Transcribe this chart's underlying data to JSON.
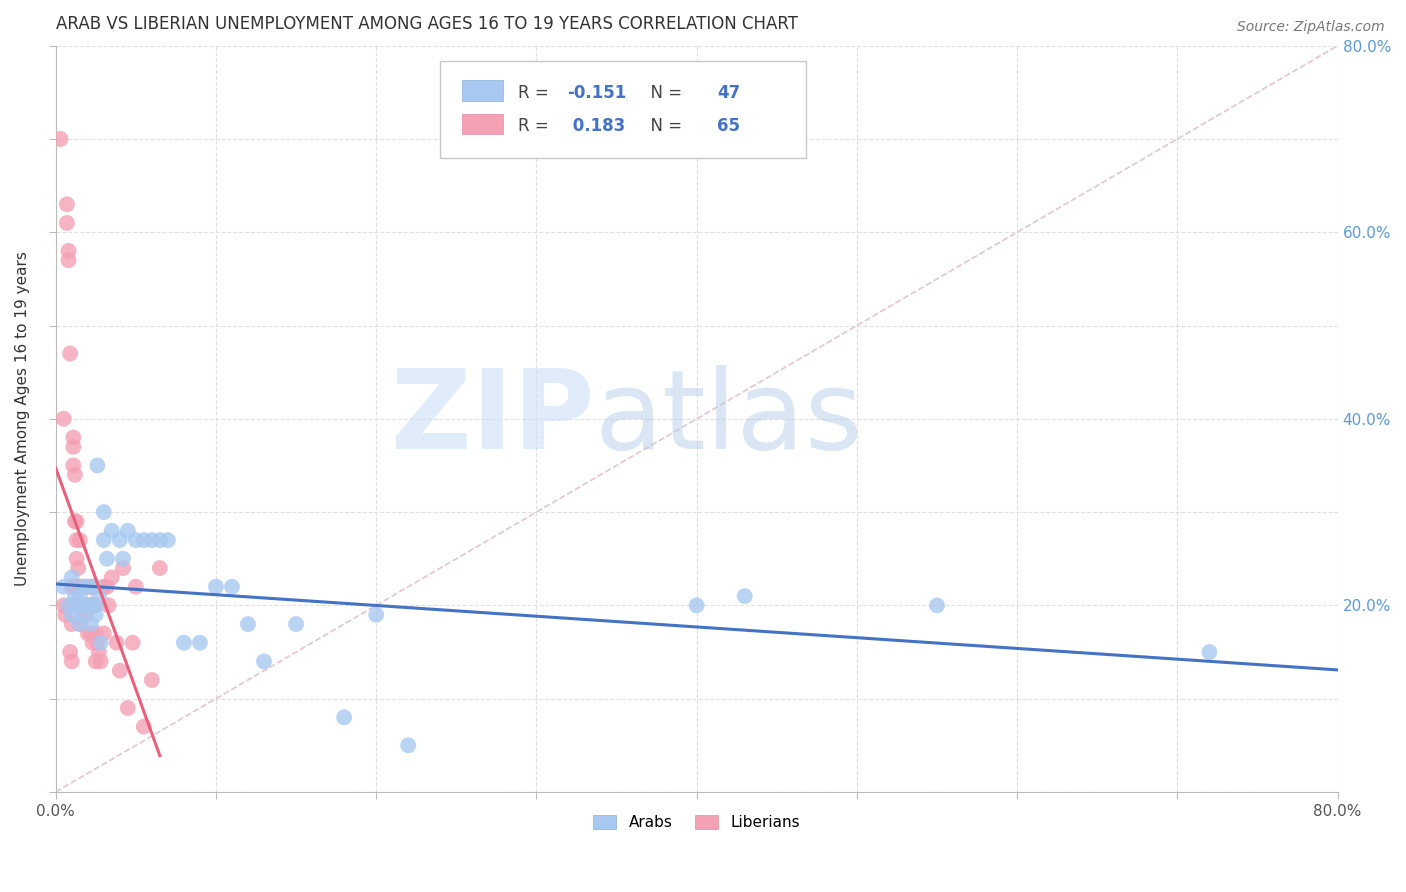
{
  "title": "ARAB VS LIBERIAN UNEMPLOYMENT AMONG AGES 16 TO 19 YEARS CORRELATION CHART",
  "source": "Source: ZipAtlas.com",
  "ylabel": "Unemployment Among Ages 16 to 19 years",
  "xlim": [
    0.0,
    0.8
  ],
  "ylim": [
    0.0,
    0.8
  ],
  "arab_color": "#a8c8f0",
  "liberian_color": "#f4a0b5",
  "arab_line_color": "#4472c4",
  "liberian_line_color": "#e8607a",
  "diagonal_color": "#cccccc",
  "legend_arab_r": "-0.151",
  "legend_arab_n": "47",
  "legend_liberian_r": "0.183",
  "legend_liberian_n": "65",
  "watermark_zip": "ZIP",
  "watermark_atlas": "atlas",
  "background_color": "#ffffff",
  "right_ytick_color": "#5b9bd5",
  "right_ytick_labels": [
    "20.0%",
    "40.0%",
    "60.0%",
    "80.0%"
  ],
  "right_ytick_positions": [
    0.2,
    0.4,
    0.6,
    0.8
  ],
  "arab_x": [
    0.005,
    0.008,
    0.01,
    0.01,
    0.012,
    0.013,
    0.015,
    0.015,
    0.016,
    0.017,
    0.018,
    0.02,
    0.02,
    0.022,
    0.023,
    0.024,
    0.025,
    0.025,
    0.026,
    0.027,
    0.028,
    0.03,
    0.03,
    0.032,
    0.035,
    0.04,
    0.042,
    0.045,
    0.05,
    0.055,
    0.06,
    0.065,
    0.07,
    0.08,
    0.09,
    0.1,
    0.11,
    0.12,
    0.13,
    0.15,
    0.18,
    0.2,
    0.22,
    0.4,
    0.43,
    0.55,
    0.72
  ],
  "arab_y": [
    0.22,
    0.2,
    0.19,
    0.23,
    0.21,
    0.2,
    0.21,
    0.18,
    0.2,
    0.19,
    0.22,
    0.2,
    0.22,
    0.18,
    0.2,
    0.22,
    0.19,
    0.2,
    0.35,
    0.21,
    0.16,
    0.27,
    0.3,
    0.25,
    0.28,
    0.27,
    0.25,
    0.28,
    0.27,
    0.27,
    0.27,
    0.27,
    0.27,
    0.16,
    0.16,
    0.22,
    0.22,
    0.18,
    0.14,
    0.18,
    0.08,
    0.19,
    0.05,
    0.2,
    0.21,
    0.2,
    0.15
  ],
  "liberian_x": [
    0.003,
    0.005,
    0.006,
    0.007,
    0.007,
    0.008,
    0.008,
    0.009,
    0.009,
    0.01,
    0.01,
    0.01,
    0.011,
    0.011,
    0.011,
    0.012,
    0.012,
    0.012,
    0.013,
    0.013,
    0.013,
    0.014,
    0.014,
    0.015,
    0.015,
    0.015,
    0.016,
    0.016,
    0.017,
    0.017,
    0.018,
    0.018,
    0.019,
    0.019,
    0.02,
    0.02,
    0.021,
    0.021,
    0.022,
    0.022,
    0.022,
    0.023,
    0.023,
    0.024,
    0.024,
    0.025,
    0.025,
    0.026,
    0.027,
    0.028,
    0.03,
    0.03,
    0.032,
    0.033,
    0.035,
    0.038,
    0.04,
    0.042,
    0.045,
    0.048,
    0.05,
    0.055,
    0.06,
    0.065,
    0.005
  ],
  "liberian_y": [
    0.7,
    0.2,
    0.19,
    0.61,
    0.63,
    0.57,
    0.58,
    0.47,
    0.15,
    0.22,
    0.18,
    0.14,
    0.38,
    0.35,
    0.37,
    0.34,
    0.29,
    0.22,
    0.29,
    0.27,
    0.25,
    0.24,
    0.2,
    0.27,
    0.22,
    0.18,
    0.22,
    0.2,
    0.22,
    0.19,
    0.22,
    0.2,
    0.22,
    0.19,
    0.2,
    0.17,
    0.22,
    0.2,
    0.22,
    0.2,
    0.17,
    0.2,
    0.16,
    0.2,
    0.22,
    0.17,
    0.14,
    0.16,
    0.15,
    0.14,
    0.22,
    0.17,
    0.22,
    0.2,
    0.23,
    0.16,
    0.13,
    0.24,
    0.09,
    0.16,
    0.22,
    0.07,
    0.12,
    0.24,
    0.4
  ]
}
